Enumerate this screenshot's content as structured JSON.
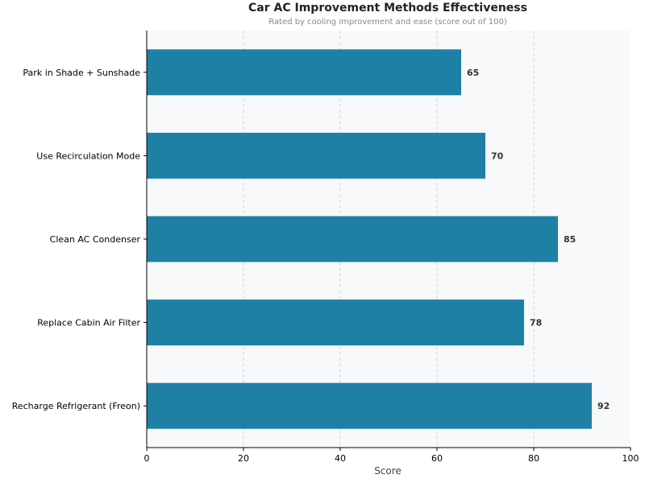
{
  "chart_data": {
    "type": "bar",
    "orientation": "horizontal",
    "title": "Car AC Improvement Methods Effectiveness",
    "subtitle": "Rated by cooling improvement and ease (score out of 100)",
    "xlabel": "Score",
    "ylabel": "",
    "xlim": [
      0,
      100
    ],
    "xticks": [
      0,
      20,
      40,
      60,
      80,
      100
    ],
    "grid": "vertical dashed",
    "categories": [
      "Park in Shade + Sunshade",
      "Use Recirculation Mode",
      "Clean AC Condenser",
      "Replace Cabin Air Filter",
      "Recharge Refrigerant (Freon)"
    ],
    "values": [
      65,
      70,
      85,
      78,
      92
    ],
    "bar_color": "#1f80a5",
    "background": "#f8f9fa"
  }
}
